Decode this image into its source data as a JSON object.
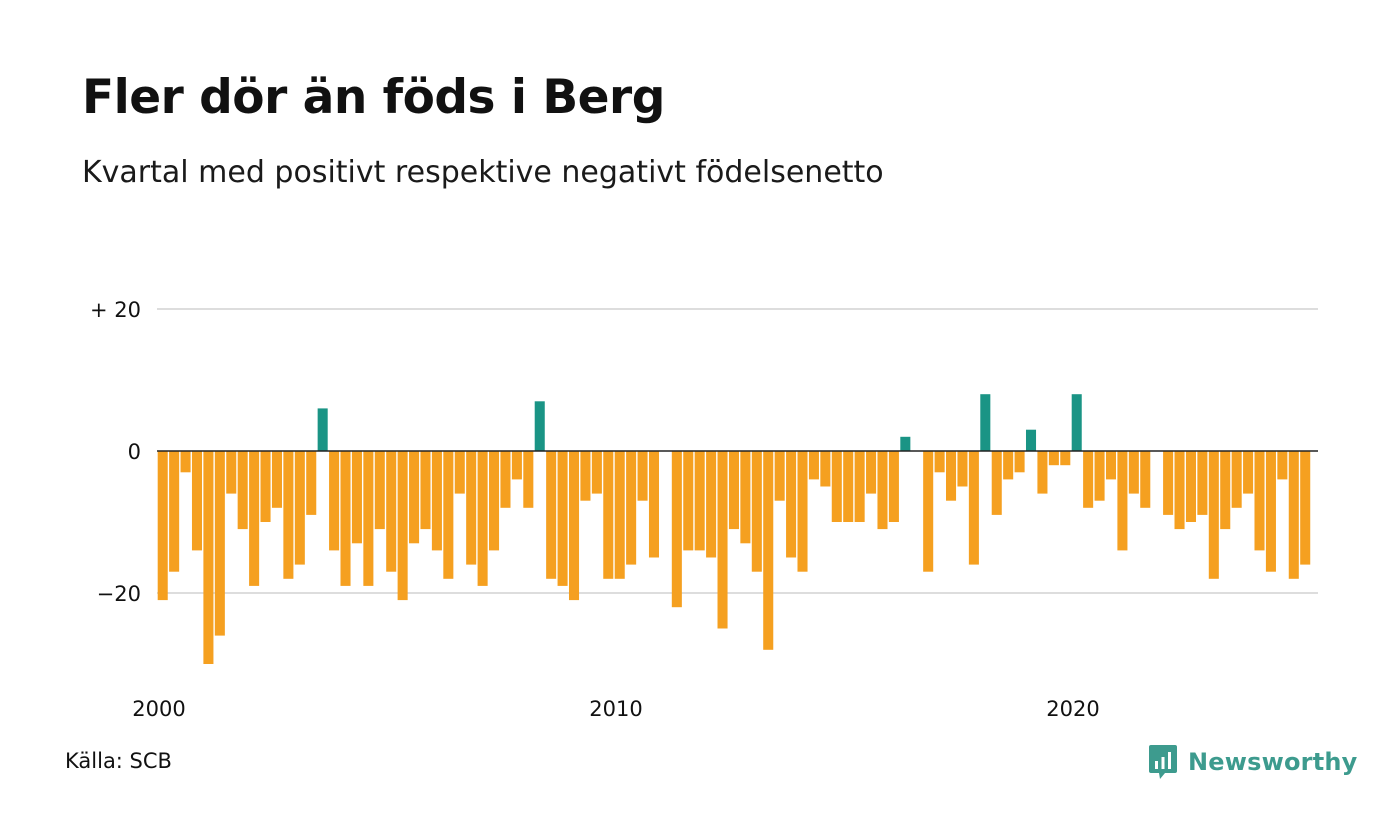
{
  "header": {
    "title": "Fler dör än föds i Berg",
    "subtitle": "Kvartal med positivt respektive negativt födelsenetto"
  },
  "footer": {
    "source": "Källa: SCB",
    "brand": "Newsworthy"
  },
  "colors": {
    "positive": "#1a9485",
    "negative": "#f5a020",
    "grid": "#dddddd",
    "zero_line": "#222222",
    "brand": "#3d9b8e"
  },
  "icons": {
    "brand_logo": "newsworthy-logo-icon"
  },
  "chart_data": {
    "type": "bar",
    "title": "Fler dör än föds i Berg",
    "subtitle": "Kvartal med positivt respektive negativt födelsenetto",
    "x_start": 2000.0,
    "x_step": 0.25,
    "x_range": [
      2000,
      2025.5
    ],
    "x_ticks": [
      {
        "value": 2000,
        "label": "2000"
      },
      {
        "value": 2010,
        "label": "2010"
      },
      {
        "value": 2020,
        "label": "2020"
      }
    ],
    "y_range": [
      -30,
      20
    ],
    "y_ticks": [
      {
        "value": 20,
        "label": "+ 20"
      },
      {
        "value": 0,
        "label": "0"
      },
      {
        "value": -20,
        "label": "−20"
      }
    ],
    "grid": true,
    "values": [
      -21,
      -17,
      -3,
      -14,
      -30,
      -26,
      -6,
      -11,
      -19,
      -10,
      -8,
      -18,
      -16,
      -9,
      6,
      -14,
      -19,
      -13,
      -19,
      -11,
      -17,
      -21,
      -13,
      -11,
      -14,
      -18,
      -6,
      -16,
      -19,
      -14,
      -8,
      -4,
      -8,
      7,
      -18,
      -19,
      -21,
      -7,
      -6,
      -18,
      -18,
      -16,
      -7,
      -15,
      0,
      -22,
      -14,
      -14,
      -15,
      -25,
      -11,
      -13,
      -17,
      -28,
      -7,
      -15,
      -17,
      -4,
      -5,
      -10,
      -10,
      -10,
      -6,
      -11,
      -10,
      2,
      0,
      -17,
      -3,
      -7,
      -5,
      -16,
      8,
      -9,
      -4,
      -3,
      3,
      -6,
      -2,
      -2,
      8,
      -8,
      -7,
      -4,
      -14,
      -6,
      -8,
      0,
      -9,
      -11,
      -10,
      -9,
      -18,
      -11,
      -8,
      -6,
      -14,
      -17,
      -4,
      -18,
      -16
    ]
  }
}
